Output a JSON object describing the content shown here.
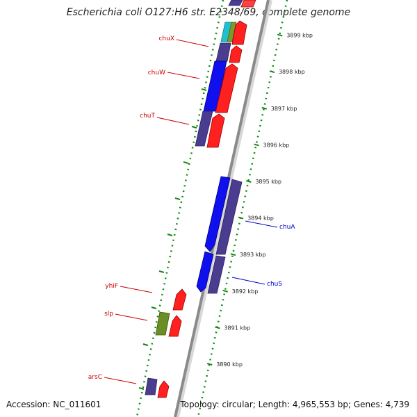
{
  "title": "Escherichia coli O127:H6 str. E2348/69, complete genome",
  "footer": {
    "accession": "Accession: NC_011601",
    "stats": "Topology: circular; Length: 4,965,553 bp; Genes: 4,739"
  },
  "colors": {
    "axis": "#808080",
    "ticks": "#118811",
    "label_forward": "#cc0000",
    "label_reverse": "#0000cc",
    "gene_red": "#ff2020",
    "gene_blue": "#1010ee",
    "gene_slate": "#4a3d8f",
    "gene_olive": "#6b8e23",
    "gene_cyan": "#20c0d0"
  },
  "ticks": [
    {
      "kbp": 3890,
      "label": "3890 kbp"
    },
    {
      "kbp": 3891,
      "label": "3891 kbp"
    },
    {
      "kbp": 3892,
      "label": "3892 kbp"
    },
    {
      "kbp": 3893,
      "label": "3893 kbp"
    },
    {
      "kbp": 3894,
      "label": "3894 kbp"
    },
    {
      "kbp": 3895,
      "label": "3895 kbp"
    },
    {
      "kbp": 3896,
      "label": "3896 kbp"
    },
    {
      "kbp": 3897,
      "label": "3897 kbp"
    },
    {
      "kbp": 3898,
      "label": "3898 kbp"
    },
    {
      "kbp": 3899,
      "label": "3899 kbp"
    }
  ],
  "genes": [
    {
      "label": "arsC",
      "strand": "left",
      "labelColor": "forward"
    },
    {
      "label": "slp",
      "strand": "left",
      "labelColor": "forward"
    },
    {
      "label": "yhiF",
      "strand": "left",
      "labelColor": "forward"
    },
    {
      "label": "chuS",
      "strand": "right",
      "labelColor": "reverse"
    },
    {
      "label": "chuA",
      "strand": "right",
      "labelColor": "reverse"
    },
    {
      "label": "chuT",
      "strand": "left",
      "labelColor": "forward"
    },
    {
      "label": "chuW",
      "strand": "left",
      "labelColor": "forward"
    },
    {
      "label": "chuX",
      "strand": "left",
      "labelColor": "forward"
    }
  ]
}
